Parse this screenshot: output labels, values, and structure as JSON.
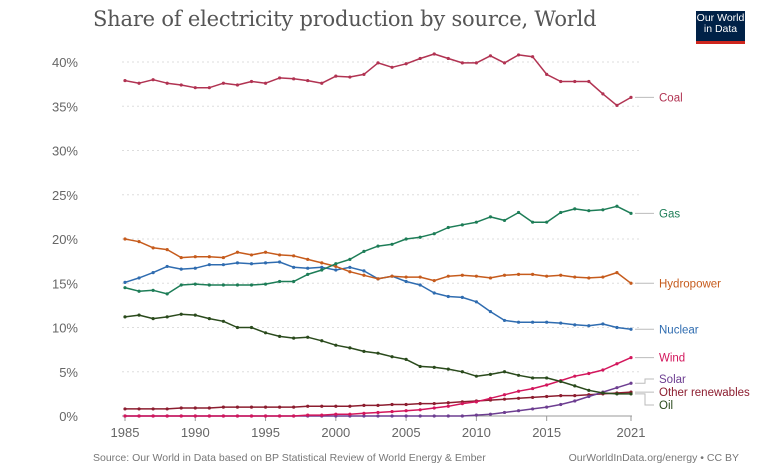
{
  "header": {
    "title": "Share of electricity production by source, World",
    "logo_line1": "Our World",
    "logo_line2": "in Data"
  },
  "footer": {
    "source": "Source: Our World in Data based on BP Statistical Review of World Energy & Ember",
    "credit": "OurWorldInData.org/energy • CC BY"
  },
  "chart_data": {
    "type": "line",
    "title": "Share of electricity production by source, World",
    "xlabel": "",
    "ylabel": "",
    "x": [
      1985,
      1986,
      1987,
      1988,
      1989,
      1990,
      1991,
      1992,
      1993,
      1994,
      1995,
      1996,
      1997,
      1998,
      1999,
      2000,
      2001,
      2002,
      2003,
      2004,
      2005,
      2006,
      2007,
      2008,
      2009,
      2010,
      2011,
      2012,
      2013,
      2014,
      2015,
      2016,
      2017,
      2018,
      2019,
      2020,
      2021
    ],
    "xlim": [
      1985,
      2021
    ],
    "xticks": [
      "1985",
      "1990",
      "1995",
      "2000",
      "2005",
      "2010",
      "2015",
      "2021"
    ],
    "xtick_values": [
      1985,
      1990,
      1995,
      2000,
      2005,
      2010,
      2015,
      2021
    ],
    "ylim": [
      0,
      40
    ],
    "yticks": [
      "0%",
      "5%",
      "10%",
      "15%",
      "20%",
      "25%",
      "30%",
      "35%",
      "40%"
    ],
    "ytick_values": [
      0,
      5,
      10,
      15,
      20,
      25,
      30,
      35,
      40
    ],
    "grid": true,
    "legend": "right (inline labels)",
    "series": [
      {
        "name": "Coal",
        "color": "#b13352",
        "values": [
          37.9,
          37.6,
          38.0,
          37.6,
          37.4,
          37.1,
          37.1,
          37.6,
          37.4,
          37.8,
          37.6,
          38.2,
          38.1,
          37.9,
          37.6,
          38.4,
          38.3,
          38.6,
          39.9,
          39.4,
          39.8,
          40.4,
          40.9,
          40.4,
          39.9,
          39.9,
          40.7,
          39.9,
          40.8,
          40.6,
          38.6,
          37.8,
          37.8,
          37.8,
          36.4,
          35.1,
          36.0
        ]
      },
      {
        "name": "Gas",
        "color": "#1d7d57",
        "values": [
          14.5,
          14.1,
          14.2,
          13.8,
          14.8,
          14.9,
          14.8,
          14.8,
          14.8,
          14.8,
          14.9,
          15.2,
          15.2,
          16.0,
          16.5,
          17.2,
          17.7,
          18.6,
          19.2,
          19.4,
          20.0,
          20.2,
          20.6,
          21.3,
          21.6,
          21.9,
          22.5,
          22.1,
          23.0,
          21.9,
          21.9,
          23.0,
          23.4,
          23.2,
          23.3,
          23.7,
          22.9
        ]
      },
      {
        "name": "Hydropower",
        "color": "#c65b1c",
        "values": [
          20.0,
          19.7,
          19.0,
          18.8,
          17.9,
          18.0,
          18.0,
          17.9,
          18.5,
          18.2,
          18.5,
          18.2,
          18.1,
          17.7,
          17.3,
          16.9,
          16.3,
          15.9,
          15.5,
          15.8,
          15.7,
          15.7,
          15.3,
          15.8,
          15.9,
          15.8,
          15.6,
          15.9,
          16.0,
          16.0,
          15.8,
          15.9,
          15.7,
          15.6,
          15.7,
          16.2,
          15.0
        ]
      },
      {
        "name": "Nuclear",
        "color": "#2f6cb0",
        "values": [
          15.1,
          15.6,
          16.2,
          16.9,
          16.6,
          16.7,
          17.1,
          17.1,
          17.3,
          17.2,
          17.3,
          17.4,
          16.8,
          16.7,
          16.8,
          16.5,
          16.8,
          16.4,
          15.5,
          15.8,
          15.2,
          14.8,
          13.9,
          13.5,
          13.4,
          12.9,
          11.8,
          10.8,
          10.6,
          10.6,
          10.6,
          10.5,
          10.3,
          10.2,
          10.4,
          10.0,
          9.8
        ]
      },
      {
        "name": "Wind",
        "color": "#d3165c",
        "values": [
          0.0,
          0.0,
          0.0,
          0.0,
          0.0,
          0.0,
          0.0,
          0.0,
          0.0,
          0.0,
          0.0,
          0.0,
          0.0,
          0.1,
          0.1,
          0.2,
          0.2,
          0.3,
          0.4,
          0.5,
          0.6,
          0.7,
          0.9,
          1.1,
          1.4,
          1.6,
          2.0,
          2.4,
          2.8,
          3.1,
          3.5,
          4.0,
          4.5,
          4.8,
          5.2,
          5.9,
          6.6
        ]
      },
      {
        "name": "Solar",
        "color": "#6d3e91",
        "values": [
          0.0,
          0.0,
          0.0,
          0.0,
          0.0,
          0.0,
          0.0,
          0.0,
          0.0,
          0.0,
          0.0,
          0.0,
          0.0,
          0.0,
          0.0,
          0.0,
          0.0,
          0.0,
          0.0,
          0.0,
          0.0,
          0.0,
          0.0,
          0.0,
          0.0,
          0.1,
          0.2,
          0.4,
          0.6,
          0.8,
          1.0,
          1.3,
          1.7,
          2.2,
          2.7,
          3.2,
          3.7
        ]
      },
      {
        "name": "Other renewables",
        "color": "#8c1d2f",
        "values": [
          0.8,
          0.8,
          0.8,
          0.8,
          0.9,
          0.9,
          0.9,
          1.0,
          1.0,
          1.0,
          1.0,
          1.0,
          1.0,
          1.1,
          1.1,
          1.1,
          1.1,
          1.2,
          1.2,
          1.3,
          1.3,
          1.4,
          1.4,
          1.5,
          1.6,
          1.7,
          1.8,
          1.9,
          2.0,
          2.1,
          2.2,
          2.3,
          2.3,
          2.4,
          2.5,
          2.6,
          2.7
        ]
      },
      {
        "name": "Oil",
        "color": "#2a4a1c",
        "values": [
          11.2,
          11.4,
          11.0,
          11.2,
          11.5,
          11.4,
          11.0,
          10.7,
          10.0,
          10.0,
          9.4,
          9.0,
          8.8,
          8.9,
          8.5,
          8.0,
          7.7,
          7.3,
          7.1,
          6.7,
          6.4,
          5.6,
          5.5,
          5.3,
          5.0,
          4.5,
          4.7,
          5.0,
          4.6,
          4.3,
          4.3,
          3.9,
          3.4,
          2.9,
          2.6,
          2.5,
          2.5
        ]
      }
    ],
    "label_order": [
      "Coal",
      "Gas",
      "Hydropower",
      "Nuclear",
      "Wind",
      "Solar",
      "Other renewables",
      "Oil"
    ]
  }
}
